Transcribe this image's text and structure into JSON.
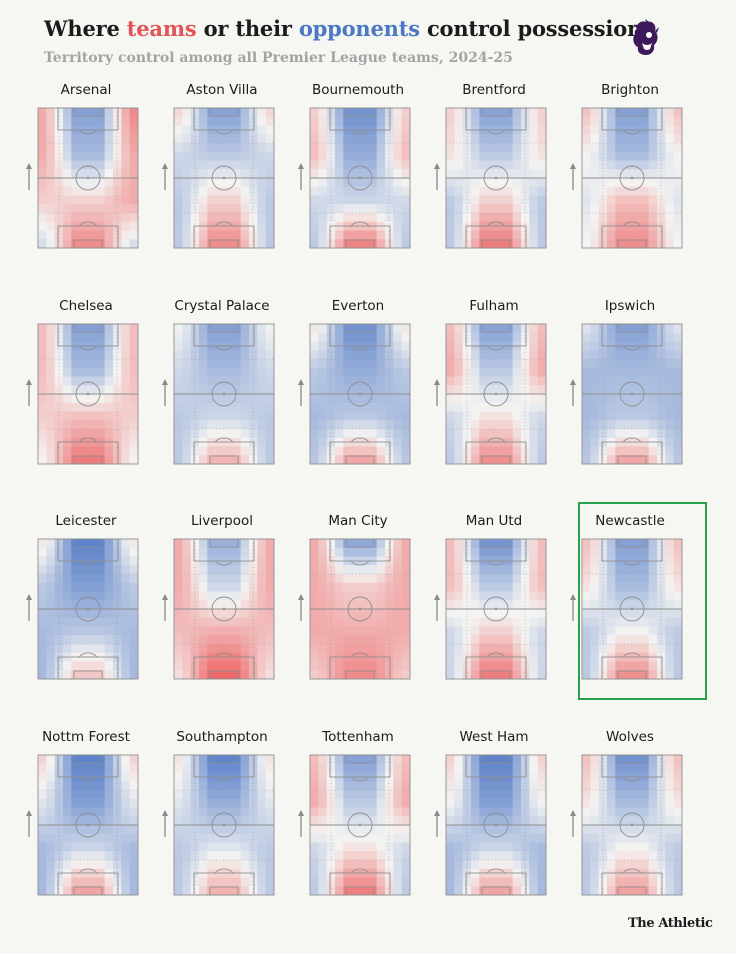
{
  "header": {
    "title_part1": "Where ",
    "title_teams": "teams",
    "title_part2": " or their ",
    "title_opponents": "opponents",
    "title_part3": " control possession",
    "subtitle": "Territory control among all Premier League teams, 2024-25"
  },
  "footer": {
    "brand": "The Athletic"
  },
  "colors": {
    "team_control": "#e35457",
    "opponent_control": "#4a78c2",
    "highlight_border": "#27a24b",
    "logo": "#3d195b"
  },
  "icons": {
    "league_logo": "premier-league-lion-icon",
    "attack_direction": "arrow-up-icon"
  },
  "chart_data": {
    "type": "heatmap",
    "title": "Where teams or their opponents control possession",
    "subtitle": "Territory control among all Premier League teams, 2024-25",
    "scale": "-1 = opponents control (blue), +1 = team controls (red)",
    "highlighted_team": "Newcastle",
    "teams": [
      {
        "name": "Arsenal",
        "values": [
          0.4,
          -0.6,
          0.6,
          0.4,
          -0.4,
          0.4,
          0.2,
          0.2,
          0.4,
          -0.2,
          0.6,
          -0.2
        ]
      },
      {
        "name": "Aston Villa",
        "values": [
          0.2,
          -0.6,
          0.2,
          -0.2,
          -0.3,
          -0.2,
          -0.3,
          0.2,
          -0.3,
          -0.3,
          0.6,
          -0.3
        ]
      },
      {
        "name": "Bournemouth",
        "values": [
          0.2,
          -0.7,
          0.2,
          0.3,
          -0.5,
          0.3,
          -0.2,
          -0.2,
          -0.2,
          -0.3,
          0.7,
          -0.3
        ]
      },
      {
        "name": "Brentford",
        "values": [
          0.2,
          -0.6,
          0.2,
          0.1,
          -0.3,
          0.1,
          -0.3,
          0.2,
          -0.3,
          -0.3,
          0.7,
          -0.3
        ]
      },
      {
        "name": "Brighton",
        "values": [
          0.3,
          -0.6,
          0.3,
          0.0,
          -0.4,
          0.0,
          -0.1,
          0.3,
          -0.1,
          0.0,
          0.6,
          0.0
        ]
      },
      {
        "name": "Chelsea",
        "values": [
          0.3,
          -0.6,
          0.3,
          0.3,
          -0.4,
          0.3,
          0.2,
          0.3,
          0.2,
          0.0,
          0.7,
          0.0
        ]
      },
      {
        "name": "Crystal Palace",
        "values": [
          0.0,
          -0.6,
          0.0,
          -0.2,
          -0.4,
          -0.2,
          -0.3,
          -0.2,
          -0.3,
          -0.3,
          0.4,
          -0.3
        ]
      },
      {
        "name": "Everton",
        "values": [
          0.1,
          -0.7,
          0.1,
          -0.3,
          -0.5,
          -0.3,
          -0.4,
          -0.3,
          -0.4,
          -0.3,
          0.5,
          -0.3
        ]
      },
      {
        "name": "Fulham",
        "values": [
          0.3,
          -0.6,
          0.3,
          0.4,
          -0.3,
          0.4,
          -0.2,
          0.1,
          -0.2,
          -0.3,
          0.6,
          -0.3
        ]
      },
      {
        "name": "Ipswich",
        "values": [
          -0.1,
          -0.6,
          -0.1,
          -0.4,
          -0.4,
          -0.4,
          -0.4,
          -0.3,
          -0.4,
          -0.3,
          0.5,
          -0.3
        ]
      },
      {
        "name": "Leicester",
        "values": [
          0.1,
          -0.8,
          0.1,
          -0.3,
          -0.6,
          -0.3,
          -0.4,
          -0.3,
          -0.4,
          -0.4,
          0.3,
          -0.4
        ]
      },
      {
        "name": "Liverpool",
        "values": [
          0.4,
          -0.5,
          0.4,
          0.4,
          -0.2,
          0.4,
          0.3,
          0.4,
          0.3,
          0.1,
          0.8,
          0.1
        ]
      },
      {
        "name": "Man City",
        "values": [
          0.4,
          -0.6,
          0.4,
          0.4,
          0.2,
          0.4,
          0.4,
          0.4,
          0.4,
          0.2,
          0.6,
          0.2
        ]
      },
      {
        "name": "Man Utd",
        "values": [
          0.3,
          -0.7,
          0.3,
          0.3,
          -0.3,
          0.3,
          -0.2,
          0.2,
          -0.2,
          -0.2,
          0.7,
          -0.2
        ]
      },
      {
        "name": "Newcastle",
        "values": [
          0.3,
          -0.6,
          0.3,
          0.1,
          -0.4,
          0.1,
          -0.3,
          0.0,
          -0.3,
          -0.3,
          0.6,
          -0.3
        ]
      },
      {
        "name": "Nottm Forest",
        "values": [
          0.2,
          -0.8,
          0.2,
          -0.1,
          -0.6,
          -0.1,
          -0.4,
          -0.2,
          -0.4,
          -0.4,
          0.5,
          -0.4
        ]
      },
      {
        "name": "Southampton",
        "values": [
          0.1,
          -0.8,
          0.1,
          -0.1,
          -0.5,
          -0.1,
          -0.3,
          -0.1,
          -0.3,
          -0.3,
          0.4,
          -0.3
        ]
      },
      {
        "name": "Tottenham",
        "values": [
          0.3,
          -0.6,
          0.3,
          0.4,
          -0.3,
          0.4,
          -0.2,
          0.1,
          -0.2,
          -0.3,
          0.7,
          -0.3
        ]
      },
      {
        "name": "West Ham",
        "values": [
          0.2,
          -0.8,
          0.2,
          0.0,
          -0.6,
          0.0,
          -0.4,
          -0.2,
          -0.4,
          -0.4,
          0.5,
          -0.4
        ]
      },
      {
        "name": "Wolves",
        "values": [
          0.3,
          -0.7,
          0.3,
          0.1,
          -0.4,
          0.1,
          -0.3,
          0.0,
          -0.3,
          -0.3,
          0.5,
          -0.3
        ]
      }
    ]
  }
}
